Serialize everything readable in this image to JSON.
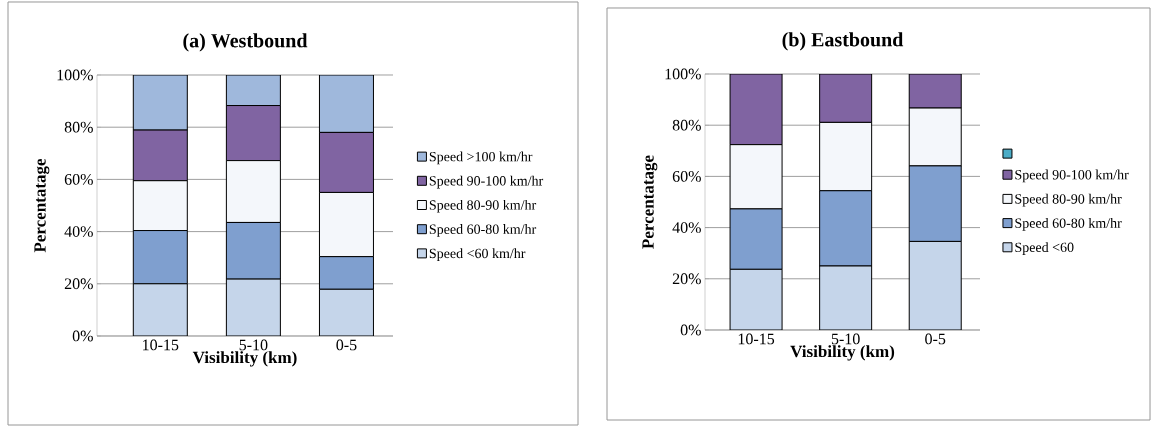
{
  "chart_data": [
    {
      "type": "bar",
      "title": "(a) Westbound",
      "xlabel": "Visibility (km)",
      "ylabel": "Percentatage",
      "categories": [
        "10-15",
        "5-10",
        "0-5"
      ],
      "stacked": true,
      "ylim": [
        0,
        100
      ],
      "yticks": [
        {
          "value": 0,
          "label": "0%"
        },
        {
          "value": 20,
          "label": "20%"
        },
        {
          "value": 40,
          "label": "40%"
        },
        {
          "value": 60,
          "label": "60%"
        },
        {
          "value": 80,
          "label": "80%"
        },
        {
          "value": 100,
          "label": "100%"
        }
      ],
      "grid": "y",
      "legend": "right",
      "series": [
        {
          "name": "Speed <60 km/hr",
          "color": "#c5d5ea",
          "values": [
            20.0,
            21.8,
            17.9
          ]
        },
        {
          "name": "Speed 60-80 km/hr",
          "color": "#7f9fcf",
          "values": [
            20.4,
            21.7,
            12.5
          ]
        },
        {
          "name": "Speed 80-90 km/hr",
          "color": "#f4f7fb",
          "values": [
            19.1,
            23.7,
            24.6
          ]
        },
        {
          "name": "Speed 90-100 km/hr",
          "color": "#8064a2",
          "values": [
            19.4,
            21.1,
            23.0
          ]
        },
        {
          "name": "Speed >100 km/hr",
          "color": "#9fb8dc",
          "values": [
            21.1,
            11.7,
            22.0
          ]
        }
      ]
    },
    {
      "type": "bar",
      "title": "(b) Eastbound",
      "xlabel": "Visibility (km)",
      "ylabel": "Percentatage",
      "categories": [
        "10-15",
        "5-10",
        "0-5"
      ],
      "stacked": true,
      "ylim": [
        0,
        100
      ],
      "yticks": [
        {
          "value": 0,
          "label": "0%"
        },
        {
          "value": 20,
          "label": "20%"
        },
        {
          "value": 40,
          "label": "40%"
        },
        {
          "value": 60,
          "label": "60%"
        },
        {
          "value": 80,
          "label": "80%"
        },
        {
          "value": 100,
          "label": "100%"
        }
      ],
      "grid": "y",
      "legend": "right",
      "series": [
        {
          "name": "Speed <60",
          "color": "#c5d5ea",
          "values": [
            23.7,
            25.0,
            34.6
          ]
        },
        {
          "name": "Speed 60-80 km/hr",
          "color": "#7f9fcf",
          "values": [
            23.6,
            29.4,
            29.5
          ]
        },
        {
          "name": "Speed 80-90 km/hr",
          "color": "#f4f7fb",
          "values": [
            25.1,
            26.7,
            22.6
          ]
        },
        {
          "name": "Speed 90-100 km/hr",
          "color": "#8064a2",
          "values": [
            27.6,
            18.9,
            13.3
          ]
        },
        {
          "color": "#4bacc6",
          "values": [
            0,
            0,
            0
          ]
        }
      ]
    }
  ]
}
